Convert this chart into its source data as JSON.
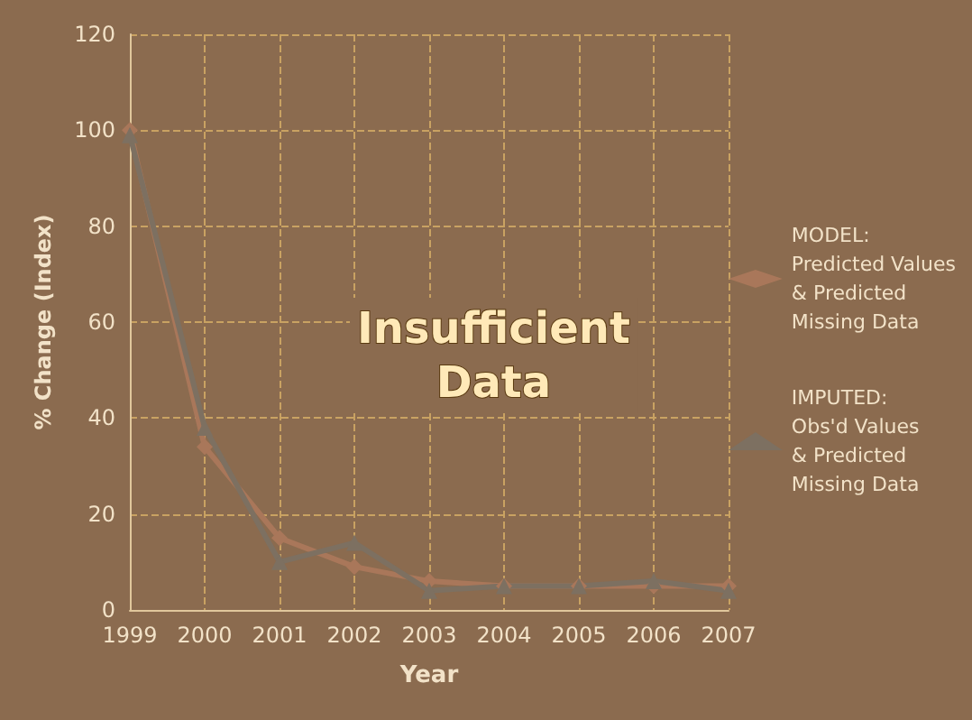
{
  "chart_data": {
    "type": "line",
    "xlabel": "Year",
    "ylabel": "% Change (Index)",
    "categories": [
      "1999",
      "2000",
      "2001",
      "2002",
      "2003",
      "2004",
      "2005",
      "2006",
      "2007"
    ],
    "series": [
      {
        "name": "MODEL:\nPredicted Values\n& Predicted\nMissing Data",
        "color": "#a9775a",
        "marker": "diamond",
        "values": [
          100,
          34,
          15,
          9,
          6,
          5,
          5,
          5,
          5
        ]
      },
      {
        "name": "IMPUTED:\nObs'd Values\n& Predicted\nMissing Data",
        "color": "#7d7061",
        "marker": "triangle",
        "values": [
          99,
          38,
          10,
          14,
          4,
          5,
          5,
          6,
          4
        ]
      }
    ],
    "ylim": [
      0,
      120
    ],
    "yticks": [
      0,
      20,
      40,
      60,
      80,
      100,
      120
    ],
    "grid": true,
    "legend": "right",
    "line_style": "solid",
    "annotations": [
      "Insufficient\nData"
    ]
  }
}
